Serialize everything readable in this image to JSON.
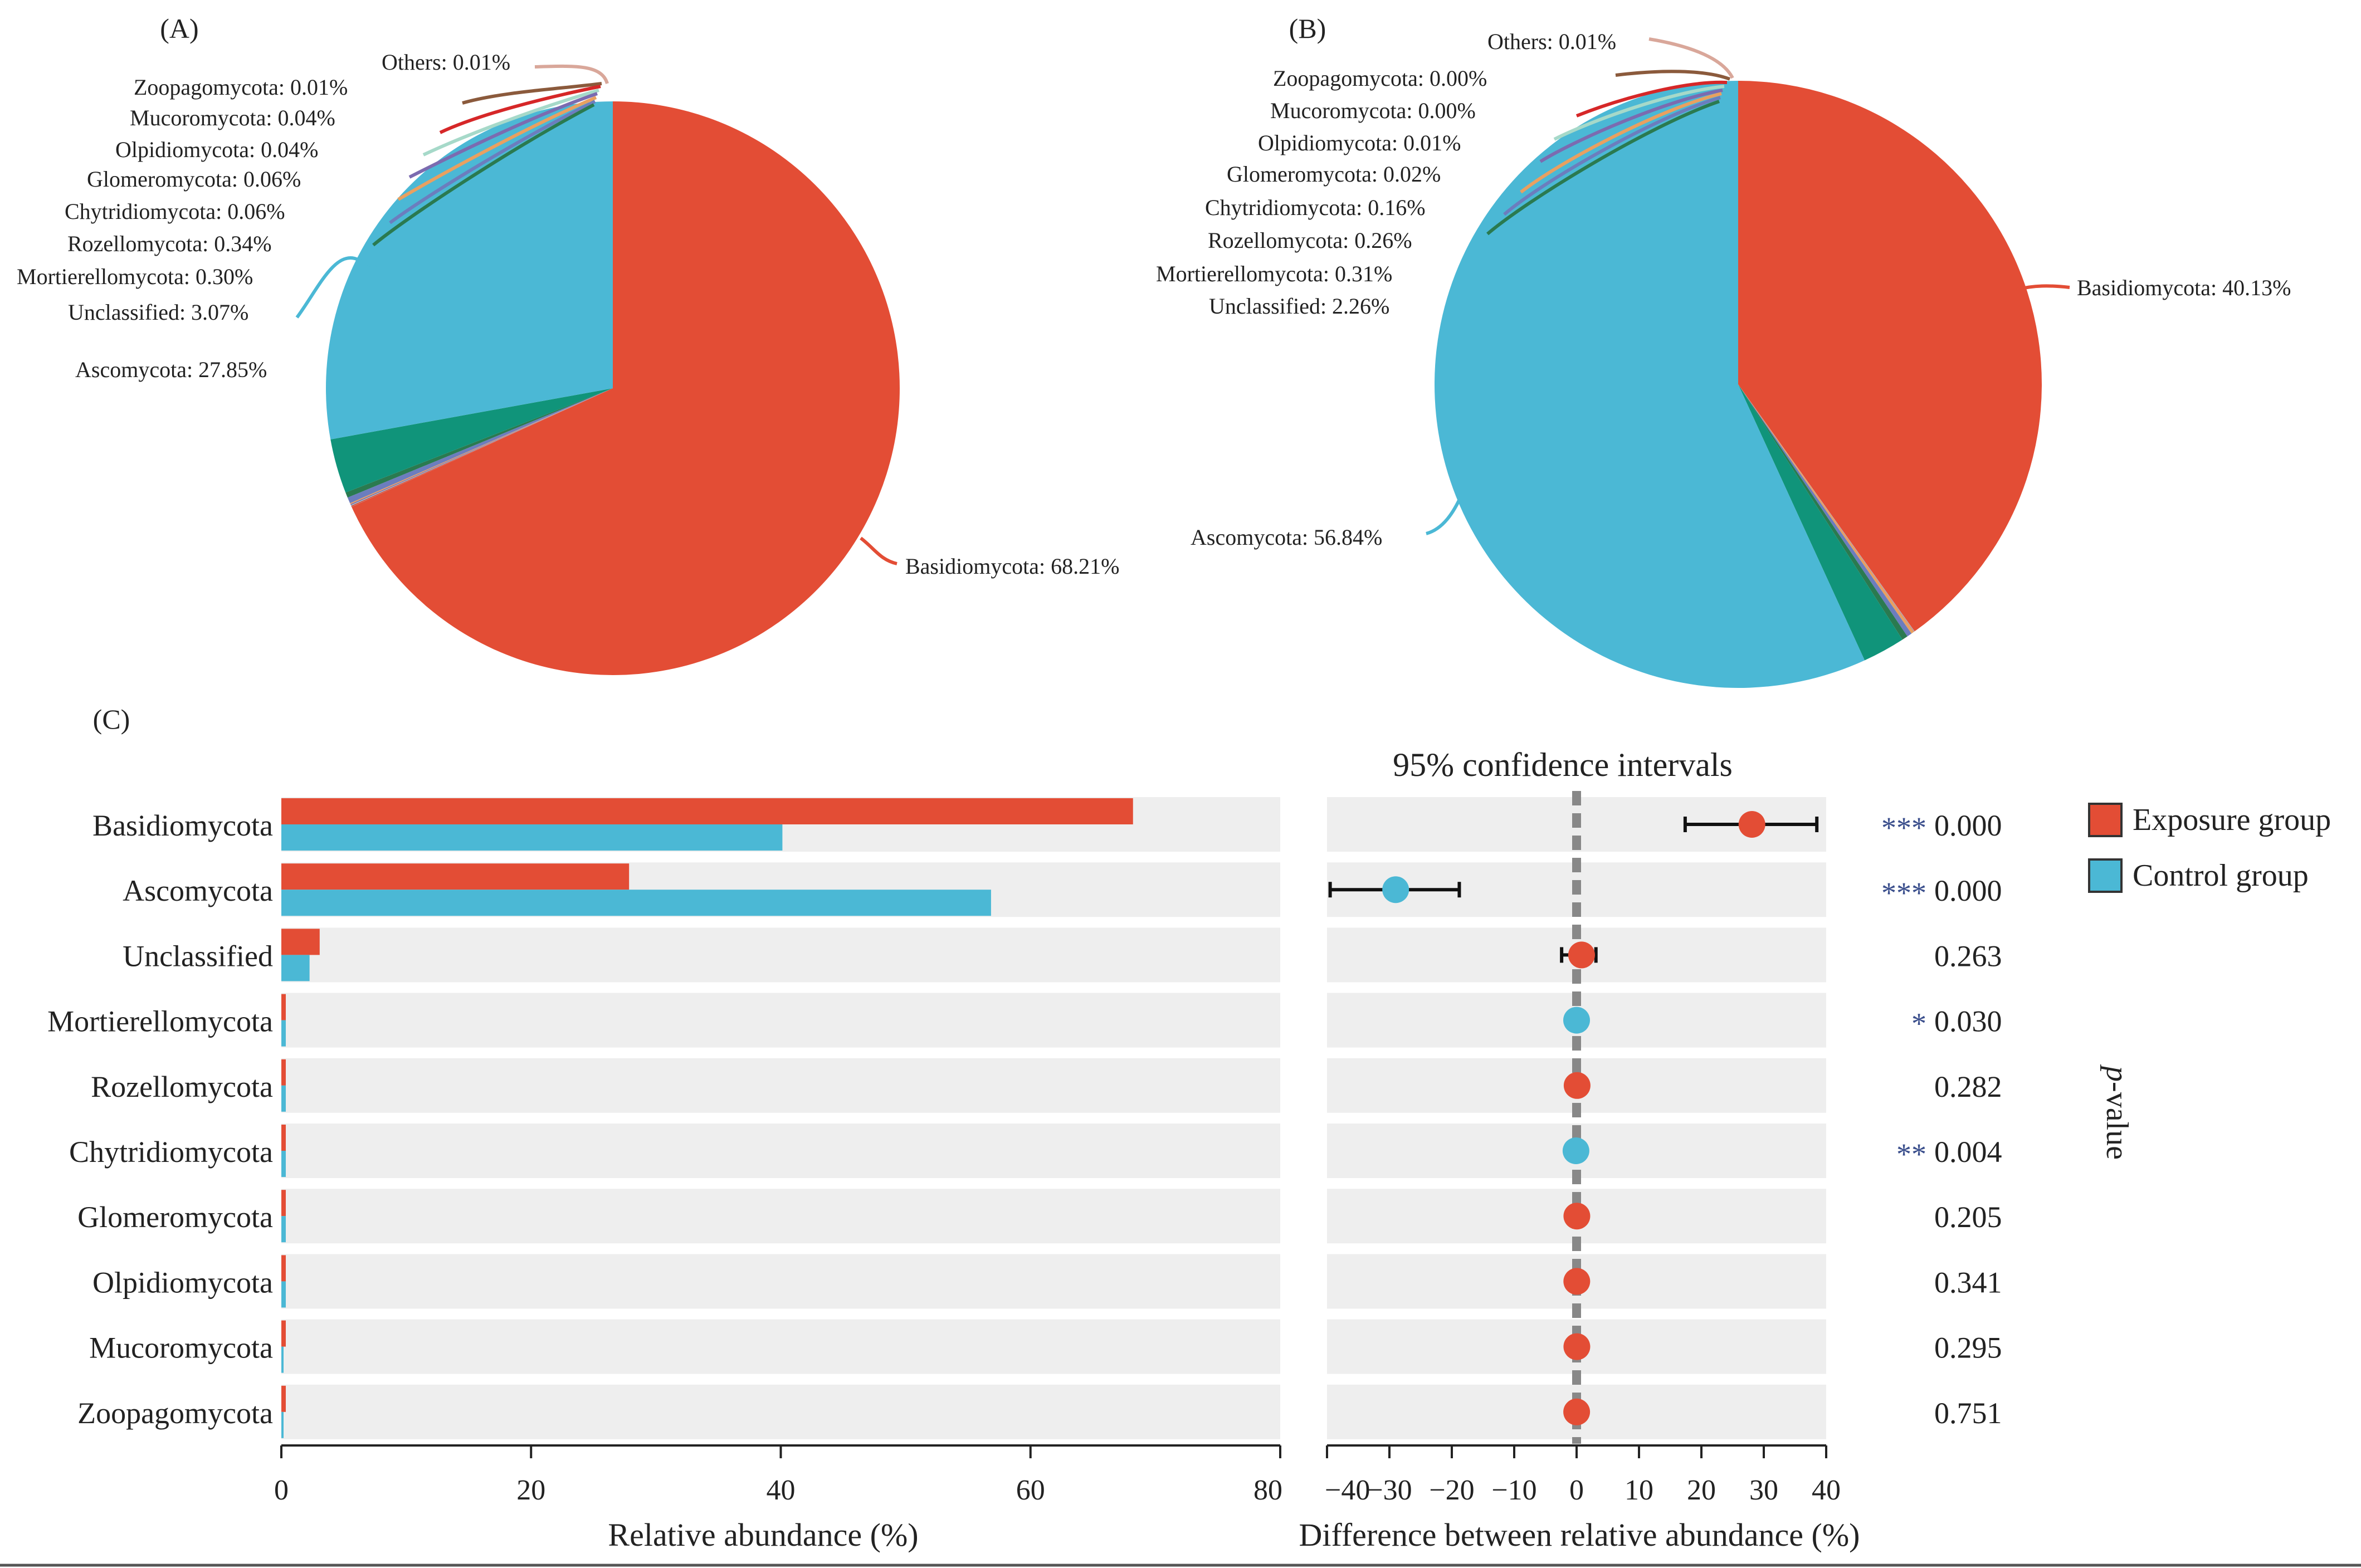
{
  "colors": {
    "exposure": "#E34D35",
    "control": "#4BB8D5",
    "teal": "#10947A",
    "panel_bg": "#EEEEEE",
    "star": "#3A4E8C",
    "dashed": "#888888"
  },
  "chart_data": [
    {
      "type": "pie",
      "panel_label": "(A)",
      "slices": [
        {
          "label": "Basidiomycota: 68.21%",
          "name": "Basidiomycota",
          "value": 68.21,
          "color": "#E34D35"
        },
        {
          "label": "Others: 0.01%",
          "name": "Others",
          "value": 0.01,
          "color": "#D9A79A"
        },
        {
          "label": "Zoopagomycota: 0.01%",
          "name": "Zoopagomycota",
          "value": 0.01,
          "color": "#8B5A3C"
        },
        {
          "label": "Mucoromycota: 0.04%",
          "name": "Mucoromycota",
          "value": 0.04,
          "color": "#D62728"
        },
        {
          "label": "Olpidiomycota: 0.04%",
          "name": "Olpidiomycota",
          "value": 0.04,
          "color": "#A6D9C9"
        },
        {
          "label": "Glomeromycota: 0.06%",
          "name": "Glomeromycota",
          "value": 0.06,
          "color": "#7B6BB0"
        },
        {
          "label": "Chytridiomycota: 0.06%",
          "name": "Chytridiomycota",
          "value": 0.06,
          "color": "#E9A060"
        },
        {
          "label": "Rozellomycota: 0.34%",
          "name": "Rozellomycota",
          "value": 0.34,
          "color": "#6C7DBE"
        },
        {
          "label": "Mortierellomycota: 0.30%",
          "name": "Mortierellomycota",
          "value": 0.3,
          "color": "#2A7A50"
        },
        {
          "label": "Unclassified: 3.07%",
          "name": "Unclassified",
          "value": 3.07,
          "color": "#10947A"
        },
        {
          "label": "Ascomycota: 27.85%",
          "name": "Ascomycota",
          "value": 27.85,
          "color": "#4BB8D5"
        }
      ]
    },
    {
      "type": "pie",
      "panel_label": "(B)",
      "slices": [
        {
          "label": "Basidiomycota: 40.13%",
          "name": "Basidiomycota",
          "value": 40.13,
          "color": "#E34D35"
        },
        {
          "label": "Others: 0.01%",
          "name": "Others",
          "value": 0.01,
          "color": "#D9A79A"
        },
        {
          "label": "Zoopagomycota: 0.00%",
          "name": "Zoopagomycota",
          "value": 0.0,
          "color": "#8B5A3C"
        },
        {
          "label": "Mucoromycota: 0.00%",
          "name": "Mucoromycota",
          "value": 0.0,
          "color": "#D62728"
        },
        {
          "label": "Olpidiomycota: 0.01%",
          "name": "Olpidiomycota",
          "value": 0.01,
          "color": "#A6D9C9"
        },
        {
          "label": "Glomeromycota: 0.02%",
          "name": "Glomeromycota",
          "value": 0.02,
          "color": "#7B6BB0"
        },
        {
          "label": "Chytridiomycota: 0.16%",
          "name": "Chytridiomycota",
          "value": 0.16,
          "color": "#E9A060"
        },
        {
          "label": "Rozellomycota: 0.26%",
          "name": "Rozellomycota",
          "value": 0.26,
          "color": "#6C7DBE"
        },
        {
          "label": "Mortierellomycota: 0.31%",
          "name": "Mortierellomycota",
          "value": 0.31,
          "color": "#2A7A50"
        },
        {
          "label": "Unclassified: 2.26%",
          "name": "Unclassified",
          "value": 2.26,
          "color": "#10947A"
        },
        {
          "label": "Ascomycota: 56.84%",
          "name": "Ascomycota",
          "value": 56.84,
          "color": "#4BB8D5"
        }
      ]
    },
    {
      "type": "bar",
      "orientation": "horizontal",
      "panel_label": "(C)",
      "categories": [
        "Basidiomycota",
        "Ascomycota",
        "Unclassified",
        "Mortierellomycota",
        "Rozellomycota",
        "Chytridiomycota",
        "Glomeromycota",
        "Olpidiomycota",
        "Mucoromycota",
        "Zoopagomycota"
      ],
      "series": [
        {
          "name": "Exposure group",
          "values": [
            68.21,
            27.85,
            3.07,
            0.3,
            0.34,
            0.06,
            0.06,
            0.04,
            0.04,
            0.01
          ]
        },
        {
          "name": "Control group",
          "values": [
            40.13,
            56.84,
            2.26,
            0.31,
            0.26,
            0.16,
            0.02,
            0.01,
            0.0,
            0.0
          ]
        }
      ],
      "xlabel": "Relative abundance (%)",
      "xlim": [
        0,
        80
      ],
      "xticks": [
        "0",
        "20",
        "40",
        "60",
        "80"
      ]
    },
    {
      "type": "scatter",
      "title": "95% confidence intervals",
      "xlabel": "Difference between relative abundance (%)",
      "xlim": [
        -40,
        40
      ],
      "xticks": [
        "−40",
        "−30",
        "−20",
        "−10",
        "0",
        "10",
        "20",
        "30",
        "40"
      ],
      "categories": [
        "Basidiomycota",
        "Ascomycota",
        "Unclassified",
        "Mortierellomycota",
        "Rozellomycota",
        "Chytridiomycota",
        "Glomeromycota",
        "Olpidiomycota",
        "Mucoromycota",
        "Zoopagomycota"
      ],
      "points": [
        {
          "diff": 28.1,
          "ci": [
            17.4,
            38.5
          ],
          "group": "exposure"
        },
        {
          "diff": -29.0,
          "ci": [
            -39.5,
            -18.8
          ],
          "group": "control"
        },
        {
          "diff": 0.8,
          "ci": [
            -2.4,
            3.1
          ],
          "group": "exposure"
        },
        {
          "diff": 0.0,
          "ci": null,
          "group": "control"
        },
        {
          "diff": 0.08,
          "ci": null,
          "group": "exposure"
        },
        {
          "diff": -0.1,
          "ci": null,
          "group": "control"
        },
        {
          "diff": 0.04,
          "ci": null,
          "group": "exposure"
        },
        {
          "diff": 0.03,
          "ci": null,
          "group": "exposure"
        },
        {
          "diff": 0.04,
          "ci": null,
          "group": "exposure"
        },
        {
          "diff": 0.01,
          "ci": null,
          "group": "exposure"
        }
      ],
      "significance": [
        "***",
        "***",
        "",
        "*",
        "",
        "**",
        "",
        "",
        "",
        ""
      ],
      "pvalues": [
        "0.000",
        "0.000",
        "0.263",
        "0.030",
        "0.282",
        "0.004",
        "0.205",
        "0.341",
        "0.295",
        "0.751"
      ],
      "pvalue_label": "p-value",
      "pvalue_label_italic": "p",
      "pvalue_label_rest": "-value"
    }
  ],
  "legend": [
    {
      "label": "Exposure group",
      "color": "#E34D35"
    },
    {
      "label": "Control group",
      "color": "#4BB8D5"
    }
  ]
}
